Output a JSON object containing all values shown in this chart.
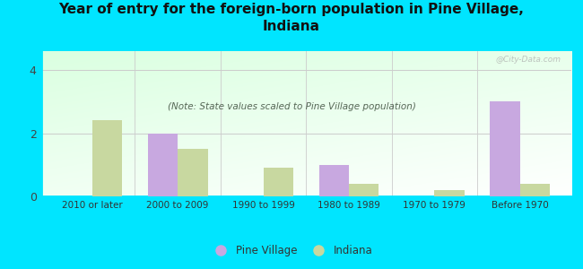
{
  "title": "Year of entry for the foreign-born population in Pine Village,\nIndiana",
  "subtitle": "(Note: State values scaled to Pine Village population)",
  "categories": [
    "2010 or later",
    "2000 to 2009",
    "1990 to 1999",
    "1980 to 1989",
    "1970 to 1979",
    "Before 1970"
  ],
  "pine_village": [
    0,
    2.0,
    0,
    1.0,
    0,
    3.0
  ],
  "indiana": [
    2.4,
    1.5,
    0.9,
    0.4,
    0.2,
    0.4
  ],
  "pine_village_color": "#c8a8e0",
  "indiana_color": "#c8d8a0",
  "background_color": "#00e5ff",
  "title_color": "#111111",
  "subtitle_color": "#556655",
  "yticks": [
    0,
    2,
    4
  ],
  "ylim": [
    0,
    4.6
  ],
  "bar_width": 0.35,
  "legend_pine_village": "Pine Village",
  "legend_indiana": "Indiana",
  "watermark": "@City-Data.com"
}
